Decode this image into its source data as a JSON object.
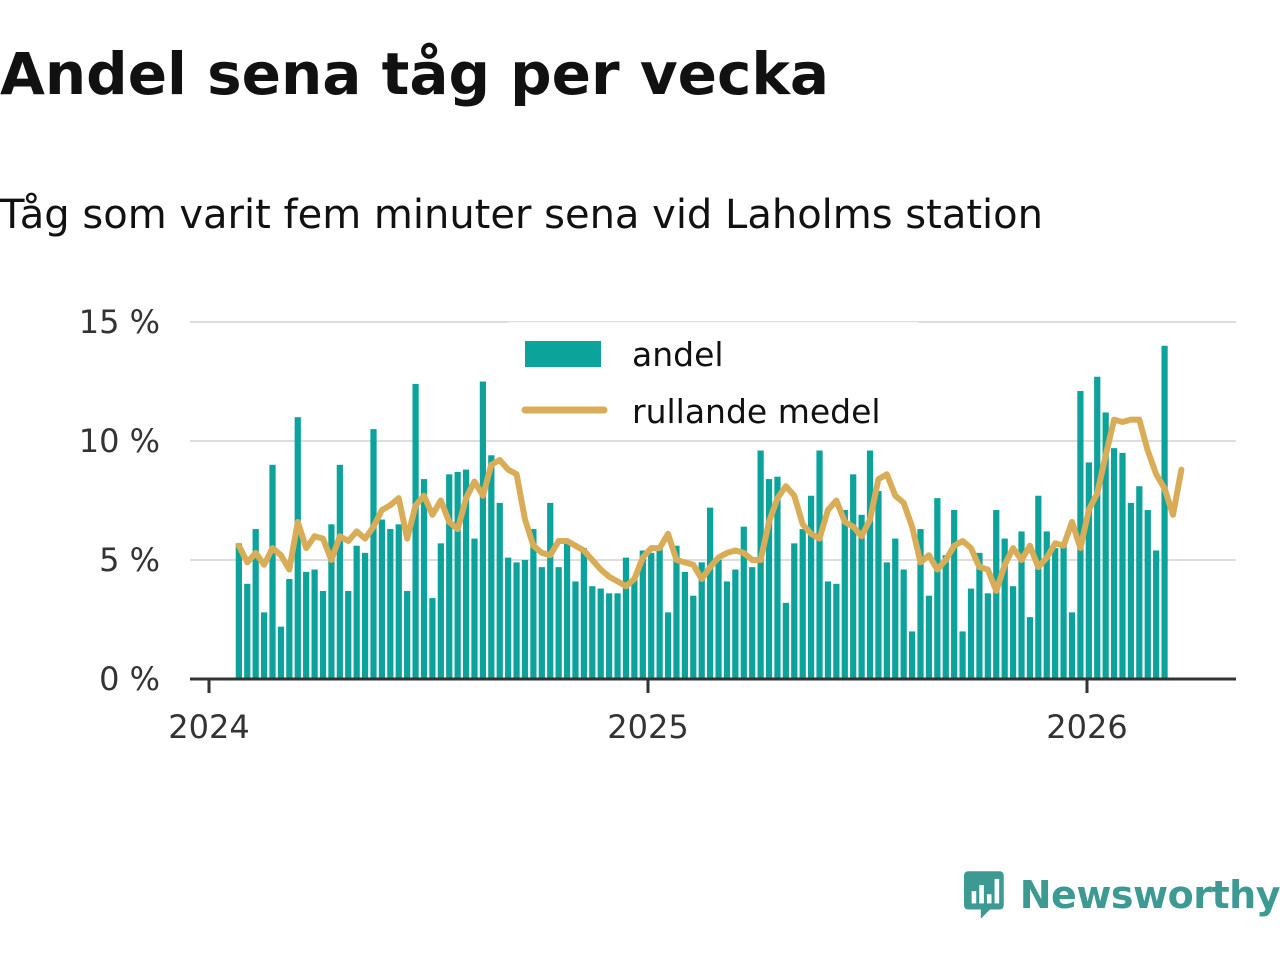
{
  "header": {
    "title": "Andel sena tåg per vecka",
    "subtitle": "Tåg som varit fem minuter sena vid Laholms station"
  },
  "brand": {
    "name": "Newsworthy",
    "icon": "newsworthy-logo-icon"
  },
  "colors": {
    "bars": "#0ba39b",
    "line": "#d9ad57",
    "grid": "#dddddd",
    "axis": "#333333",
    "brand": "#3d9a93"
  },
  "chart_data": {
    "type": "bar",
    "title": "Andel sena tåg per vecka",
    "subtitle": "Tåg som varit fem minuter sena vid Laholms station",
    "xlabel": "",
    "ylabel": "",
    "ylim": [
      0,
      15
    ],
    "xlim": [
      2024.0,
      2026.35
    ],
    "y_ticks": [
      0,
      5,
      10,
      15
    ],
    "y_tick_labels": [
      "0 %",
      "5 %",
      "10 %",
      "15 %"
    ],
    "x_ticks": [
      2024,
      2025,
      2026
    ],
    "x_tick_labels": [
      "2024",
      "2025",
      "2026"
    ],
    "grid": true,
    "legend_position": "top-center",
    "x_start": 2024.068,
    "x_step": 0.01917,
    "series": [
      {
        "name": "andel",
        "type": "bar",
        "values": [
          5.7,
          4.0,
          6.3,
          2.8,
          9.0,
          2.2,
          4.2,
          11.0,
          4.5,
          4.6,
          3.7,
          6.5,
          9.0,
          3.7,
          5.6,
          5.3,
          10.5,
          6.7,
          6.3,
          6.5,
          3.7,
          12.4,
          8.4,
          3.4,
          5.7,
          8.6,
          8.7,
          8.8,
          5.9,
          12.5,
          9.4,
          7.4,
          5.1,
          4.9,
          5.0,
          6.3,
          4.7,
          7.4,
          4.7,
          5.7,
          4.1,
          5.5,
          3.9,
          3.8,
          3.6,
          3.6,
          5.1,
          4.2,
          5.4,
          5.3,
          5.5,
          2.8,
          5.6,
          4.5,
          3.5,
          4.9,
          7.2,
          5.0,
          4.1,
          4.6,
          6.4,
          4.7,
          9.6,
          8.4,
          8.5,
          3.2,
          5.7,
          6.3,
          7.7,
          9.6,
          4.1,
          4.0,
          7.1,
          8.6,
          6.9,
          9.6,
          7.9,
          4.9,
          5.9,
          4.6,
          2.0,
          6.3,
          3.5,
          7.6,
          5.2,
          7.1,
          2.0,
          3.8,
          5.3,
          3.6,
          7.1,
          5.9,
          3.9,
          6.2,
          2.6,
          7.7,
          6.2,
          5.5,
          5.6,
          2.8,
          12.1,
          9.1,
          12.7,
          11.2,
          9.7,
          9.5,
          7.4,
          8.1,
          7.1,
          5.4,
          14.0
        ]
      },
      {
        "name": "rullande medel",
        "type": "line",
        "values": [
          5.6,
          4.9,
          5.3,
          4.8,
          5.5,
          5.2,
          4.6,
          6.6,
          5.5,
          6.0,
          5.9,
          5.0,
          6.0,
          5.8,
          6.2,
          5.9,
          6.4,
          7.1,
          7.3,
          7.6,
          5.9,
          7.3,
          7.7,
          6.9,
          7.5,
          6.6,
          6.3,
          7.6,
          8.3,
          7.7,
          9.0,
          9.2,
          8.8,
          8.6,
          6.7,
          5.6,
          5.3,
          5.2,
          5.8,
          5.8,
          5.6,
          5.4,
          5.0,
          4.6,
          4.3,
          4.1,
          3.9,
          4.2,
          5.1,
          5.5,
          5.5,
          6.1,
          5.0,
          4.9,
          4.8,
          4.2,
          4.7,
          5.1,
          5.3,
          5.4,
          5.3,
          5.0,
          5.0,
          6.6,
          7.6,
          8.1,
          7.7,
          6.5,
          6.1,
          5.9,
          7.1,
          7.5,
          6.6,
          6.4,
          6.0,
          6.7,
          8.4,
          8.6,
          7.7,
          7.4,
          6.4,
          4.9,
          5.2,
          4.6,
          5.0,
          5.6,
          5.8,
          5.5,
          4.7,
          4.6,
          3.7,
          4.8,
          5.5,
          5.0,
          5.6,
          4.7,
          5.1,
          5.7,
          5.6,
          6.6,
          5.5,
          7.1,
          7.8,
          9.4,
          10.9,
          10.8,
          10.9,
          10.9,
          9.6,
          8.6,
          8.0,
          6.9,
          8.8
        ]
      }
    ]
  }
}
